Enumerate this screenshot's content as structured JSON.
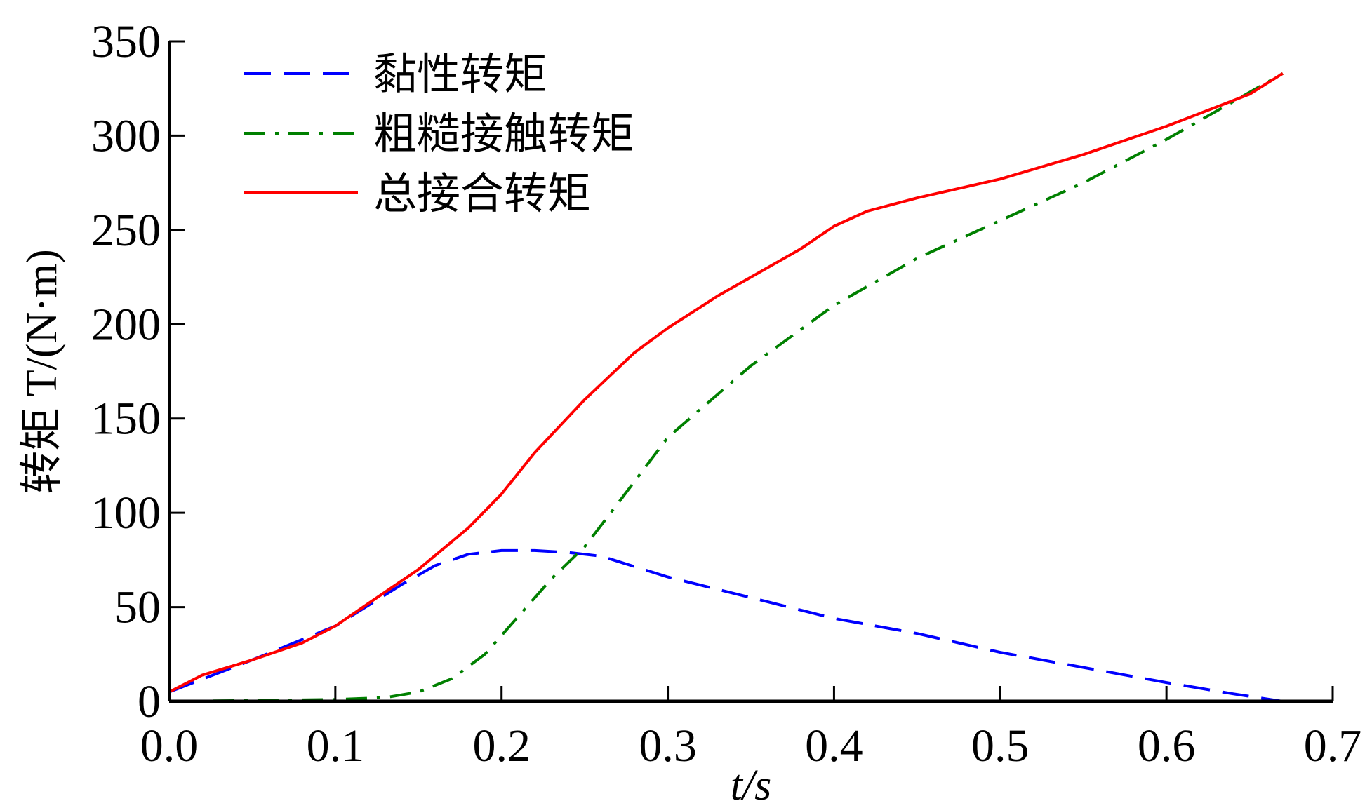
{
  "chart_data": {
    "type": "line",
    "title": "",
    "xlabel": "t/s",
    "ylabel": "转矩 T/(N·m)",
    "xlim": [
      0,
      0.7
    ],
    "ylim": [
      0,
      350
    ],
    "xticks": [
      "0.0",
      "0.1",
      "0.2",
      "0.3",
      "0.4",
      "0.5",
      "0.6",
      "0.7"
    ],
    "yticks": [
      "0",
      "50",
      "100",
      "150",
      "200",
      "250",
      "300",
      "350"
    ],
    "grid": false,
    "legend_position": "top-left",
    "series": [
      {
        "name": "黏性转矩",
        "color": "#0000ff",
        "style": "dashed",
        "x": [
          0,
          0.05,
          0.1,
          0.14,
          0.16,
          0.18,
          0.2,
          0.22,
          0.24,
          0.26,
          0.3,
          0.35,
          0.4,
          0.45,
          0.5,
          0.55,
          0.6,
          0.64,
          0.67
        ],
        "y": [
          5,
          22,
          40,
          62,
          72,
          78,
          80,
          80,
          79,
          77,
          66,
          55,
          44,
          36,
          26,
          18,
          10,
          4,
          0
        ]
      },
      {
        "name": "粗糙接触转矩",
        "color": "#008000",
        "style": "dashdot",
        "x": [
          0,
          0.05,
          0.1,
          0.13,
          0.15,
          0.17,
          0.19,
          0.21,
          0.23,
          0.25,
          0.27,
          0.3,
          0.35,
          0.4,
          0.42,
          0.45,
          0.5,
          0.55,
          0.6,
          0.67
        ],
        "y": [
          0,
          0.5,
          1,
          2,
          5,
          12,
          25,
          45,
          65,
          82,
          105,
          140,
          178,
          210,
          220,
          235,
          255,
          275,
          298,
          333
        ]
      },
      {
        "name": "总接合转矩",
        "color": "#ff0000",
        "style": "solid",
        "x": [
          0,
          0.02,
          0.05,
          0.08,
          0.1,
          0.12,
          0.15,
          0.18,
          0.2,
          0.22,
          0.25,
          0.28,
          0.3,
          0.33,
          0.35,
          0.38,
          0.4,
          0.42,
          0.45,
          0.5,
          0.55,
          0.6,
          0.65,
          0.67
        ],
        "y": [
          5,
          14,
          22,
          31,
          40,
          52,
          70,
          92,
          110,
          132,
          160,
          185,
          198,
          215,
          225,
          240,
          252,
          260,
          267,
          277,
          290,
          305,
          322,
          333
        ]
      }
    ]
  }
}
